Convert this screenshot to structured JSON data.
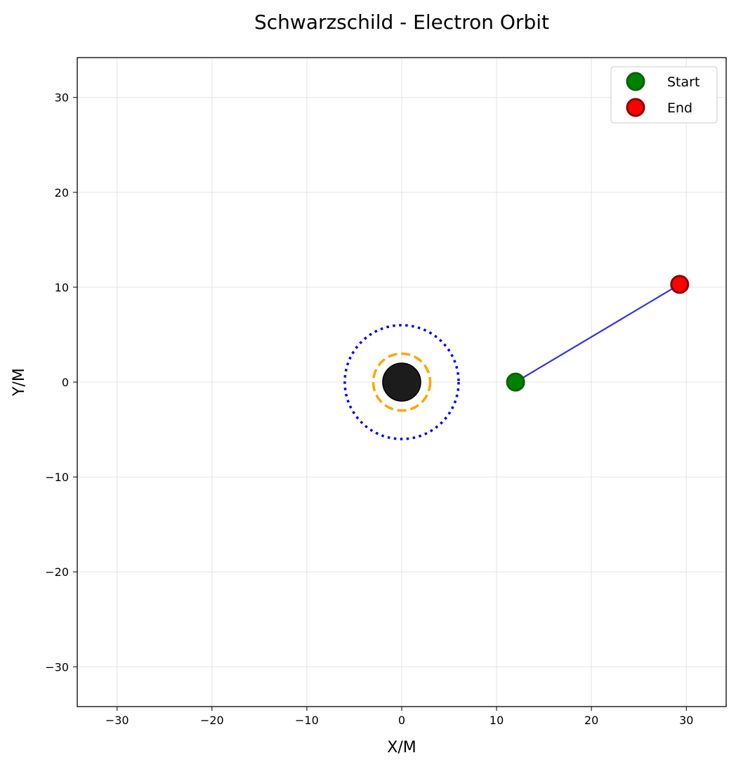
{
  "chart_data": {
    "type": "scatter",
    "title": "Schwarzschild - Electron Orbit",
    "xlabel": "X/M",
    "ylabel": "Y/M",
    "xlim": [
      -34.2,
      34.2
    ],
    "ylim": [
      -34.2,
      34.2
    ],
    "xticks": [
      -30,
      -20,
      -10,
      0,
      10,
      20,
      30
    ],
    "yticks": [
      -30,
      -20,
      -10,
      0,
      10,
      20,
      30
    ],
    "xtick_labels": [
      "−30",
      "−20",
      "−10",
      "0",
      "10",
      "20",
      "30"
    ],
    "ytick_labels": [
      "−30",
      "−20",
      "−10",
      "0",
      "10",
      "20",
      "30"
    ],
    "grid": true,
    "legend_position": "top-right",
    "trajectory": {
      "x": [
        12,
        29.3
      ],
      "y": [
        0,
        10.3
      ],
      "color": "#3333dd"
    },
    "markers": [
      {
        "name": "Start",
        "x": 12,
        "y": 0,
        "color": "#008000",
        "edge_color": "#006400"
      },
      {
        "name": "End",
        "x": 29.3,
        "y": 10.3,
        "color": "#ff0000",
        "edge_color": "#8b0000"
      }
    ],
    "circles": [
      {
        "role": "black-hole",
        "radius": 2,
        "fill": "#1c1c1c",
        "style": "solid"
      },
      {
        "role": "event-horizon",
        "radius": 3,
        "color": "#ffa500",
        "style": "dashed"
      },
      {
        "role": "isco",
        "radius": 6,
        "color": "#0000ee",
        "style": "dotted"
      }
    ]
  }
}
